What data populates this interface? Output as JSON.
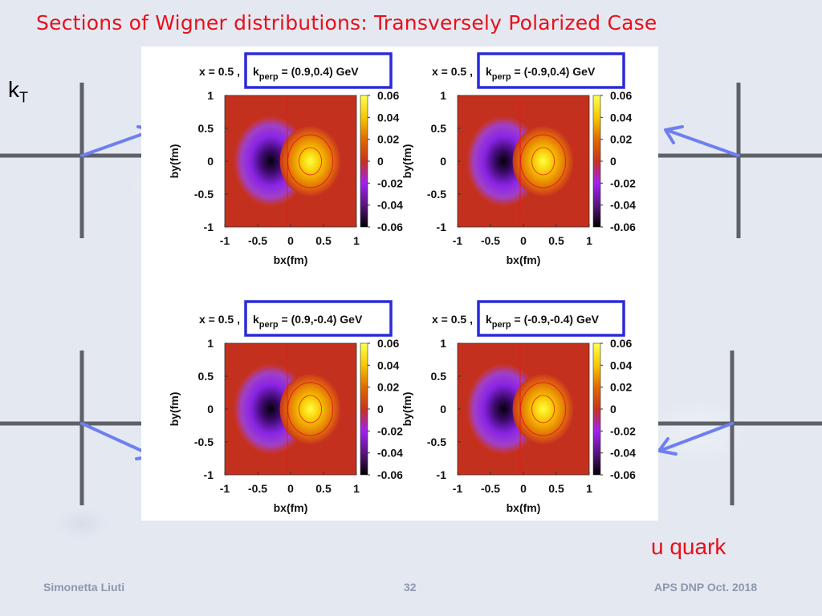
{
  "slide": {
    "title": "Sections of Wigner distributions: Transversely Polarized Case",
    "kt_label_main": "k",
    "kt_label_sub": "T",
    "quark_label": "u quark",
    "footer_author": "Simonetta Liuti",
    "footer_page": "32",
    "footer_event": "APS DNP Oct. 2018"
  },
  "colors": {
    "title_red": "#e8101b",
    "arrow_blue": "#6f7ff0",
    "crosshair_gray": "#5e6167",
    "panel_box_blue": "#2a2adb",
    "colormap": [
      "#000000",
      "#5a1480",
      "#a020f0",
      "#c8321e",
      "#e06a00",
      "#f5c800",
      "#ffff50"
    ]
  },
  "chart_data": [
    {
      "type": "heatmap",
      "title_prefix": "x = 0.5 , ",
      "k_label": "k",
      "k_sub": "perp",
      "kperp_text": " = (0.9,0.4) GeV",
      "kperp": [
        0.9,
        0.4
      ],
      "x": 0.5,
      "xlabel": "bx(fm)",
      "ylabel": "by(fm)",
      "xlim": [
        -1,
        1
      ],
      "ylim": [
        -1,
        1
      ],
      "xticks": [
        "-1",
        "-0.5",
        "0",
        "0.5",
        "1"
      ],
      "yticks": [
        "1",
        "0.5",
        "0",
        "-0.5",
        "-1"
      ],
      "colorbar_ticks": [
        "0.06",
        "0.04",
        "0.02",
        "0",
        "-0.02",
        "-0.04",
        "-0.06"
      ],
      "zlim": [
        -0.06,
        0.06
      ],
      "features": [
        {
          "sign": "negative",
          "bx": -0.3,
          "by": 0.0,
          "value": -0.06
        },
        {
          "sign": "positive",
          "bx": 0.3,
          "by": 0.0,
          "value": 0.06
        }
      ]
    },
    {
      "type": "heatmap",
      "title_prefix": "x = 0.5 , ",
      "k_label": "k",
      "k_sub": "perp",
      "kperp_text": " = (-0.9,0.4) GeV",
      "kperp": [
        -0.9,
        0.4
      ],
      "x": 0.5,
      "xlabel": "bx(fm)",
      "ylabel": "by(fm)",
      "xlim": [
        -1,
        1
      ],
      "ylim": [
        -1,
        1
      ],
      "xticks": [
        "-1",
        "-0.5",
        "0",
        "0.5",
        "1"
      ],
      "yticks": [
        "1",
        "0.5",
        "0",
        "-0.5",
        "-1"
      ],
      "colorbar_ticks": [
        "0.06",
        "0.04",
        "0.02",
        "0",
        "-0.02",
        "-0.04",
        "-0.06"
      ],
      "zlim": [
        -0.06,
        0.06
      ],
      "features": [
        {
          "sign": "negative",
          "bx": -0.3,
          "by": 0.0,
          "value": -0.06
        },
        {
          "sign": "positive",
          "bx": 0.3,
          "by": 0.0,
          "value": 0.06
        }
      ]
    },
    {
      "type": "heatmap",
      "title_prefix": "x = 0.5 , ",
      "k_label": "k",
      "k_sub": "perp",
      "kperp_text": " = (0.9,-0.4) GeV",
      "kperp": [
        0.9,
        -0.4
      ],
      "x": 0.5,
      "xlabel": "bx(fm)",
      "ylabel": "by(fm)",
      "xlim": [
        -1,
        1
      ],
      "ylim": [
        -1,
        1
      ],
      "xticks": [
        "-1",
        "-0.5",
        "0",
        "0.5",
        "1"
      ],
      "yticks": [
        "1",
        "0.5",
        "0",
        "-0.5",
        "-1"
      ],
      "colorbar_ticks": [
        "0.06",
        "0.04",
        "0.02",
        "0",
        "-0.02",
        "-0.04",
        "-0.06"
      ],
      "zlim": [
        -0.06,
        0.06
      ],
      "features": [
        {
          "sign": "negative",
          "bx": -0.3,
          "by": 0.0,
          "value": -0.06
        },
        {
          "sign": "positive",
          "bx": 0.3,
          "by": 0.0,
          "value": 0.06
        }
      ]
    },
    {
      "type": "heatmap",
      "title_prefix": "x = 0.5 , ",
      "k_label": "k",
      "k_sub": "perp",
      "kperp_text": " = (-0.9,-0.4) GeV",
      "kperp": [
        -0.9,
        -0.4
      ],
      "x": 0.5,
      "xlabel": "bx(fm)",
      "ylabel": "by(fm)",
      "xlim": [
        -1,
        1
      ],
      "ylim": [
        -1,
        1
      ],
      "xticks": [
        "-1",
        "-0.5",
        "0",
        "0.5",
        "1"
      ],
      "yticks": [
        "1",
        "0.5",
        "0",
        "-0.5",
        "-1"
      ],
      "colorbar_ticks": [
        "0.06",
        "0.04",
        "0.02",
        "0",
        "-0.02",
        "-0.04",
        "-0.06"
      ],
      "zlim": [
        -0.06,
        0.06
      ],
      "features": [
        {
          "sign": "negative",
          "bx": -0.3,
          "by": 0.0,
          "value": -0.06
        },
        {
          "sign": "positive",
          "bx": 0.3,
          "by": 0.0,
          "value": 0.06
        }
      ]
    }
  ]
}
